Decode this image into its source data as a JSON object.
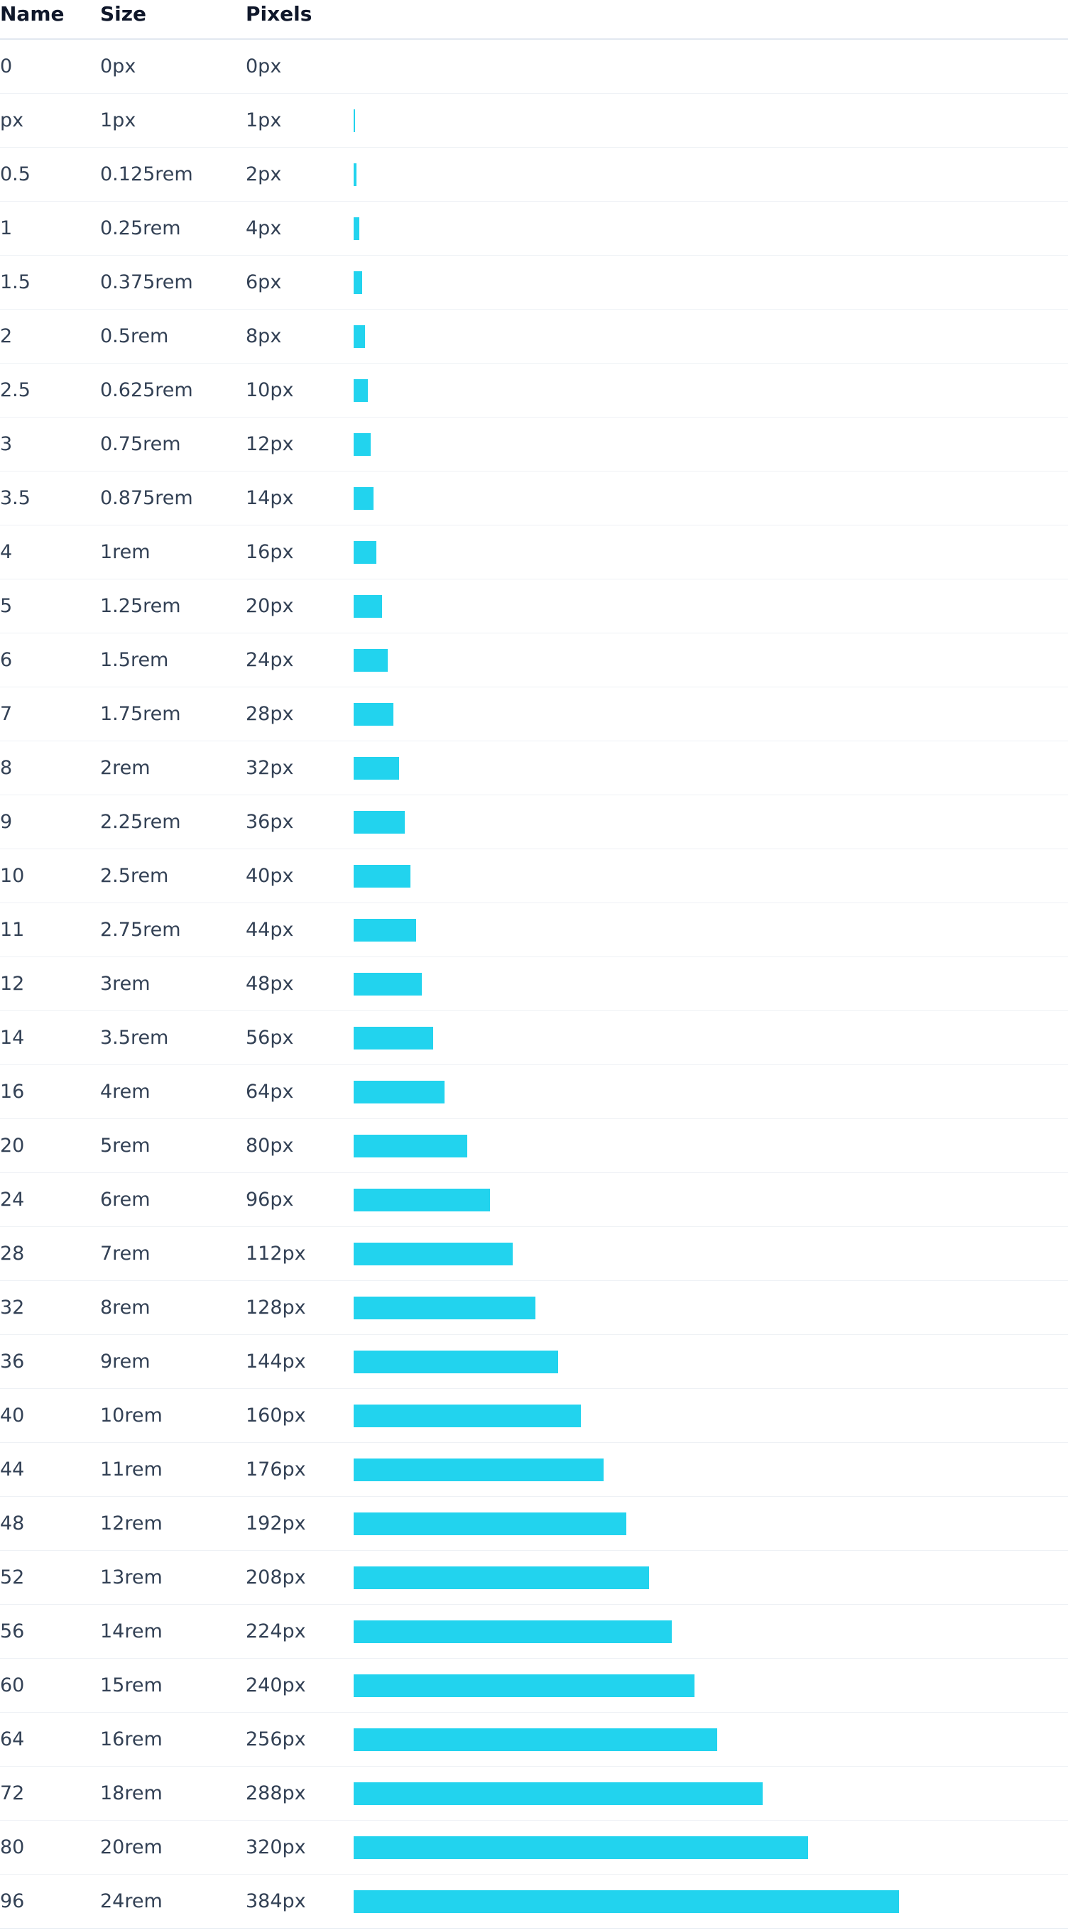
{
  "table": {
    "headers": {
      "name": "Name",
      "size": "Size",
      "pixels": "Pixels"
    },
    "bar_color": "#22d3ee",
    "rows": [
      {
        "name": "0",
        "size": "0px",
        "pixels": "0px",
        "value": 0
      },
      {
        "name": "px",
        "size": "1px",
        "pixels": "1px",
        "value": 1
      },
      {
        "name": "0.5",
        "size": "0.125rem",
        "pixels": "2px",
        "value": 2
      },
      {
        "name": "1",
        "size": "0.25rem",
        "pixels": "4px",
        "value": 4
      },
      {
        "name": "1.5",
        "size": "0.375rem",
        "pixels": "6px",
        "value": 6
      },
      {
        "name": "2",
        "size": "0.5rem",
        "pixels": "8px",
        "value": 8
      },
      {
        "name": "2.5",
        "size": "0.625rem",
        "pixels": "10px",
        "value": 10
      },
      {
        "name": "3",
        "size": "0.75rem",
        "pixels": "12px",
        "value": 12
      },
      {
        "name": "3.5",
        "size": "0.875rem",
        "pixels": "14px",
        "value": 14
      },
      {
        "name": "4",
        "size": "1rem",
        "pixels": "16px",
        "value": 16
      },
      {
        "name": "5",
        "size": "1.25rem",
        "pixels": "20px",
        "value": 20
      },
      {
        "name": "6",
        "size": "1.5rem",
        "pixels": "24px",
        "value": 24
      },
      {
        "name": "7",
        "size": "1.75rem",
        "pixels": "28px",
        "value": 28
      },
      {
        "name": "8",
        "size": "2rem",
        "pixels": "32px",
        "value": 32
      },
      {
        "name": "9",
        "size": "2.25rem",
        "pixels": "36px",
        "value": 36
      },
      {
        "name": "10",
        "size": "2.5rem",
        "pixels": "40px",
        "value": 40
      },
      {
        "name": "11",
        "size": "2.75rem",
        "pixels": "44px",
        "value": 44
      },
      {
        "name": "12",
        "size": "3rem",
        "pixels": "48px",
        "value": 48
      },
      {
        "name": "14",
        "size": "3.5rem",
        "pixels": "56px",
        "value": 56
      },
      {
        "name": "16",
        "size": "4rem",
        "pixels": "64px",
        "value": 64
      },
      {
        "name": "20",
        "size": "5rem",
        "pixels": "80px",
        "value": 80
      },
      {
        "name": "24",
        "size": "6rem",
        "pixels": "96px",
        "value": 96
      },
      {
        "name": "28",
        "size": "7rem",
        "pixels": "112px",
        "value": 112
      },
      {
        "name": "32",
        "size": "8rem",
        "pixels": "128px",
        "value": 128
      },
      {
        "name": "36",
        "size": "9rem",
        "pixels": "144px",
        "value": 144
      },
      {
        "name": "40",
        "size": "10rem",
        "pixels": "160px",
        "value": 160
      },
      {
        "name": "44",
        "size": "11rem",
        "pixels": "176px",
        "value": 176
      },
      {
        "name": "48",
        "size": "12rem",
        "pixels": "192px",
        "value": 192
      },
      {
        "name": "52",
        "size": "13rem",
        "pixels": "208px",
        "value": 208
      },
      {
        "name": "56",
        "size": "14rem",
        "pixels": "224px",
        "value": 224
      },
      {
        "name": "60",
        "size": "15rem",
        "pixels": "240px",
        "value": 240
      },
      {
        "name": "64",
        "size": "16rem",
        "pixels": "256px",
        "value": 256
      },
      {
        "name": "72",
        "size": "18rem",
        "pixels": "288px",
        "value": 288
      },
      {
        "name": "80",
        "size": "20rem",
        "pixels": "320px",
        "value": 320
      },
      {
        "name": "96",
        "size": "24rem",
        "pixels": "384px",
        "value": 384
      }
    ]
  }
}
